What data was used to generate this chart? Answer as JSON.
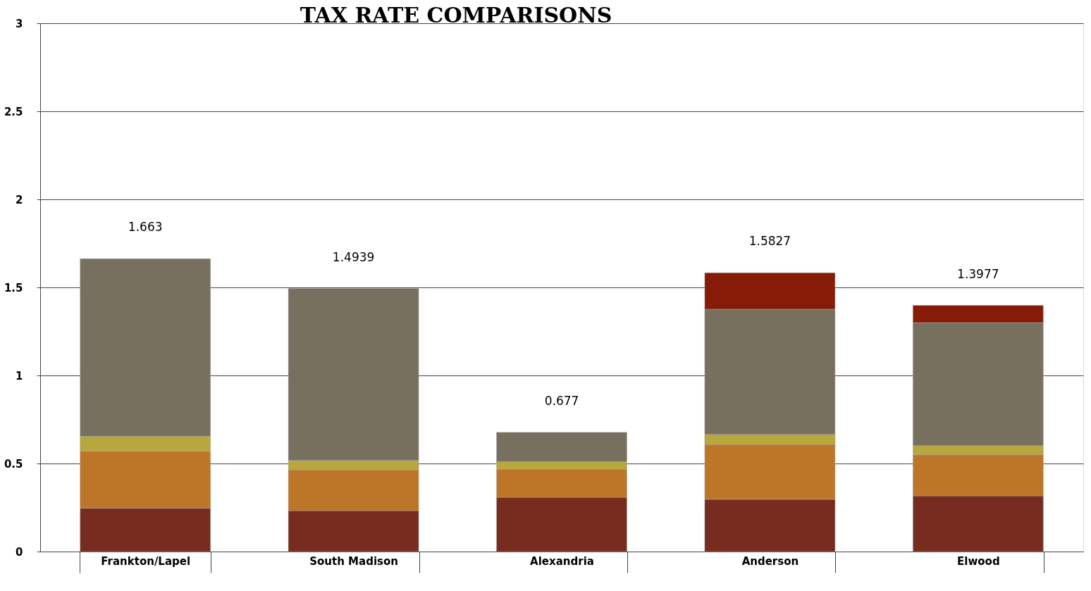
{
  "chart_data": {
    "type": "bar",
    "title": "TAX RATE COMPARISONS",
    "stacked": true,
    "categories": [
      "Frankton/Lapel",
      "South Madison",
      "Alexandria",
      "Anderson",
      "Elwood"
    ],
    "series": [
      {
        "color": "#772c1f",
        "values": [
          0.247,
          0.232,
          0.308,
          0.297,
          0.316
        ]
      },
      {
        "color": "#bd7628",
        "values": [
          0.323,
          0.232,
          0.16,
          0.311,
          0.235
        ]
      },
      {
        "color": "#b8a73a",
        "values": [
          0.084,
          0.053,
          0.042,
          0.057,
          0.05
        ]
      },
      {
        "color": "#77705e",
        "values": [
          1.009,
          0.977,
          0.167,
          0.711,
          0.699
        ]
      },
      {
        "color": "#861c08",
        "values": [
          null,
          null,
          null,
          0.207,
          0.098
        ]
      }
    ],
    "totals": [
      "1.663",
      "1.4939",
      "0.677",
      "1.5827",
      "1.3977"
    ],
    "ylim": [
      0,
      3
    ],
    "yticks": [
      0,
      0.5,
      1,
      1.5,
      2,
      2.5,
      3
    ],
    "grid": "y"
  }
}
